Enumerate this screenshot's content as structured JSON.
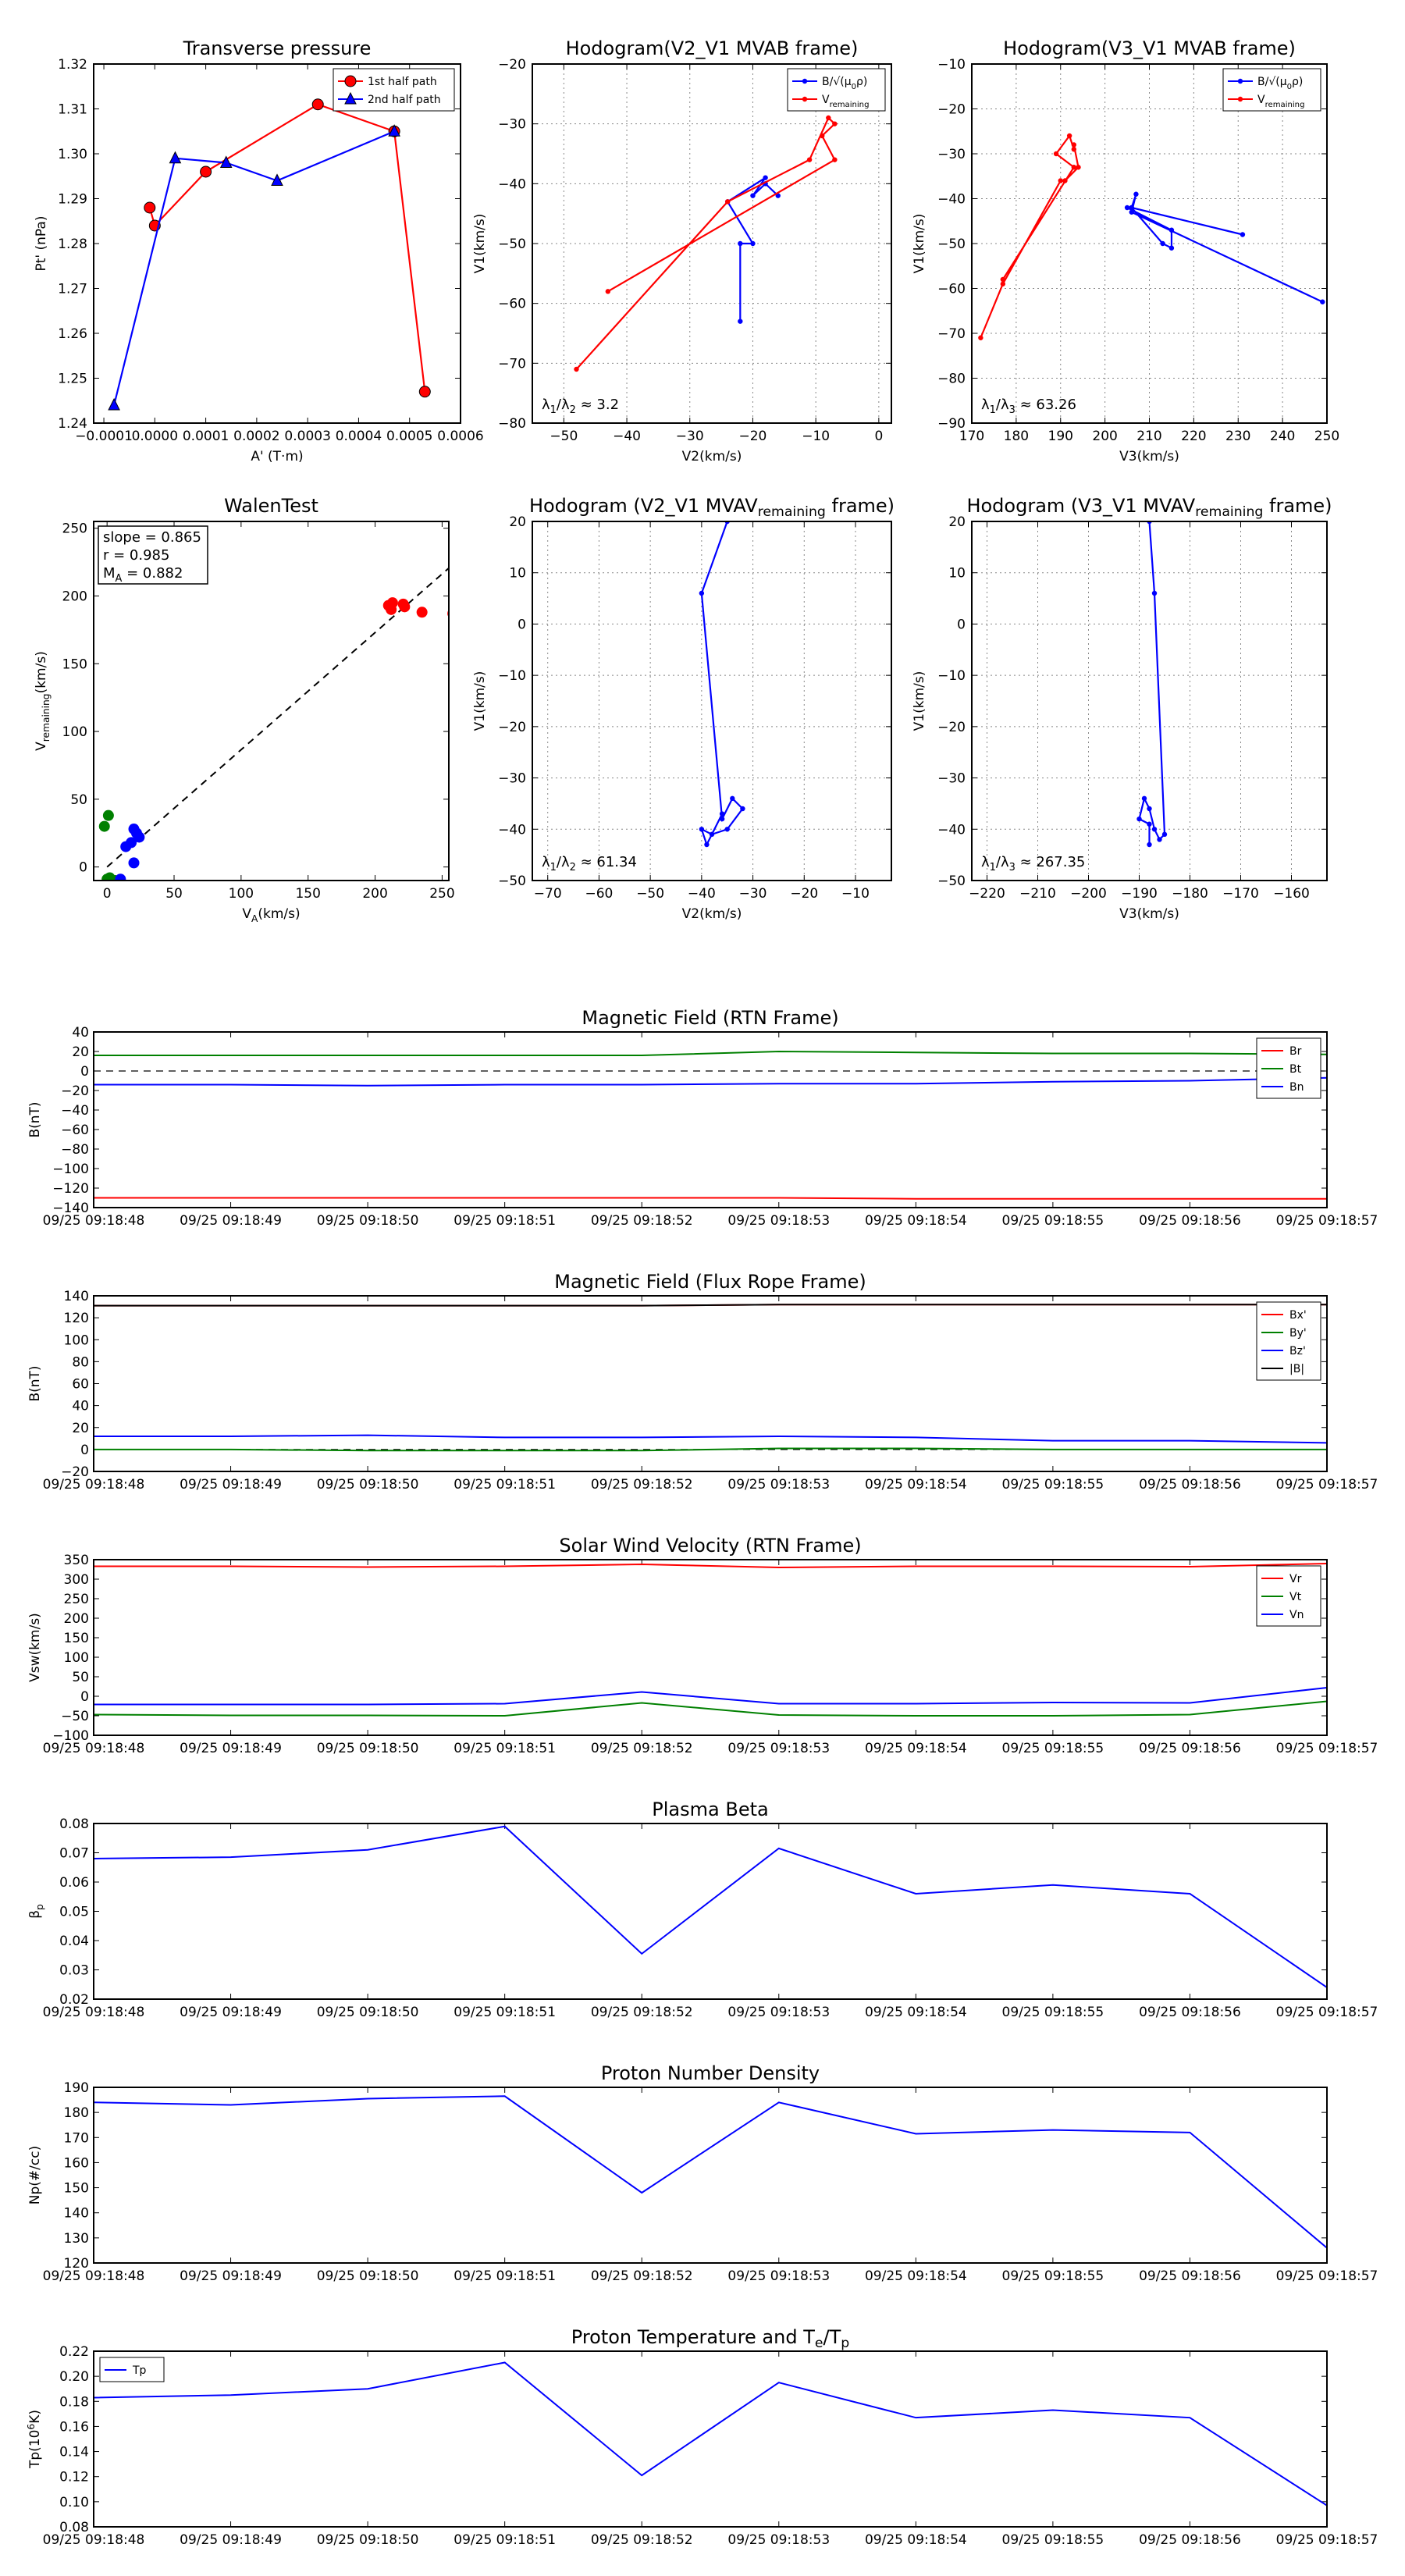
{
  "chart_data": [
    {
      "id": "tp",
      "type": "line",
      "title": "Transverse pressure",
      "xlabel": "A' (T·m)",
      "ylabel": "Pt' (nPa)",
      "xlim": [
        -0.00012,
        0.0006
      ],
      "ylim": [
        1.24,
        1.32
      ],
      "xticks": [
        -0.0001,
        0.0,
        0.0001,
        0.0002,
        0.0003,
        0.0004,
        0.0005,
        0.0006
      ],
      "xticklabels": [
        "−0.0001",
        "0.0000",
        "0.0001",
        "0.0002",
        "0.0003",
        "0.0004",
        "0.0005",
        "0.0006"
      ],
      "yticks": [
        1.24,
        1.25,
        1.26,
        1.27,
        1.28,
        1.29,
        1.3,
        1.31,
        1.32
      ],
      "yticklabels": [
        "1.24",
        "1.25",
        "1.26",
        "1.27",
        "1.28",
        "1.29",
        "1.30",
        "1.31",
        "1.32"
      ],
      "grid": false,
      "legend": "top-right",
      "series": [
        {
          "name": "1st half path",
          "color": "#ff0000",
          "marker": "circle",
          "x": [
            0.00053,
            0.00047,
            0.00032,
            0.0001,
            0.0,
            -1e-05
          ],
          "y": [
            1.247,
            1.305,
            1.311,
            1.296,
            1.284,
            1.288
          ]
        },
        {
          "name": "2nd half path",
          "color": "#0000ff",
          "marker": "triangle",
          "x": [
            -8e-05,
            4e-05,
            0.00014,
            0.00024,
            0.00047
          ],
          "y": [
            1.244,
            1.299,
            1.298,
            1.294,
            1.305
          ]
        }
      ]
    },
    {
      "id": "h1",
      "type": "line",
      "title": "Hodogram(V2_V1 MVAB frame)",
      "xlabel": "V2(km/s)",
      "ylabel": "V1(km/s)",
      "xlim": [
        -55,
        2
      ],
      "ylim": [
        -80,
        -20
      ],
      "xticks": [
        -50,
        -40,
        -30,
        -20,
        -10,
        0
      ],
      "xticklabels": [
        "−50",
        "−40",
        "−30",
        "−20",
        "−10",
        "0"
      ],
      "yticks": [
        -80,
        -70,
        -60,
        -50,
        -40,
        -30,
        -20
      ],
      "yticklabels": [
        "−80",
        "−70",
        "−60",
        "−50",
        "−40",
        "−30",
        "−20"
      ],
      "grid": true,
      "legend": "top-right",
      "annotation": "λ1/λ2 ≈ 3.2",
      "series": [
        {
          "name": "B/√(μ0ρ)",
          "color": "#0000ff",
          "marker": "dot",
          "x": [
            -22,
            -22,
            -20,
            -24,
            -18,
            -20,
            -18,
            -16
          ],
          "y": [
            -63,
            -50,
            -50,
            -43,
            -39,
            -42,
            -40,
            -42
          ]
        },
        {
          "name": "V_remaining",
          "color": "#ff0000",
          "marker": "dot",
          "x": [
            -48,
            -24,
            -11,
            -8,
            -7,
            -9,
            -7,
            -43
          ],
          "y": [
            -71,
            -43,
            -36,
            -29,
            -30,
            -32,
            -36,
            -58
          ]
        }
      ]
    },
    {
      "id": "h2",
      "type": "line",
      "title": "Hodogram(V3_V1 MVAB frame)",
      "xlabel": "V3(km/s)",
      "ylabel": "V1(km/s)",
      "xlim": [
        170,
        250
      ],
      "ylim": [
        -90,
        -10
      ],
      "xticks": [
        170,
        180,
        190,
        200,
        210,
        220,
        230,
        240,
        250
      ],
      "xticklabels": [
        "170",
        "180",
        "190",
        "200",
        "210",
        "220",
        "230",
        "240",
        "250"
      ],
      "yticks": [
        -90,
        -80,
        -70,
        -60,
        -50,
        -40,
        -30,
        -20,
        -10
      ],
      "yticklabels": [
        "−90",
        "−80",
        "−70",
        "−60",
        "−50",
        "−40",
        "−30",
        "−20",
        "−10"
      ],
      "grid": true,
      "legend": "top-right",
      "annotation": "λ1/λ3 ≈ 63.26",
      "series": [
        {
          "name": "B/√(μ0ρ)",
          "color": "#0000ff",
          "marker": "dot",
          "x": [
            249,
            206,
            207,
            206,
            231,
            206,
            213,
            215,
            215,
            205
          ],
          "y": [
            -63,
            -43,
            -39,
            -42,
            -48,
            -42,
            -50,
            -51,
            -47,
            -42
          ]
        },
        {
          "name": "V_remaining",
          "color": "#ff0000",
          "marker": "dot",
          "x": [
            172,
            177,
            190,
            191,
            194,
            193,
            193,
            192,
            189,
            193,
            177
          ],
          "y": [
            -71,
            -59,
            -36,
            -36,
            -33,
            -28,
            -29,
            -26,
            -30,
            -33,
            -58
          ]
        }
      ]
    },
    {
      "id": "walen",
      "type": "scatter",
      "title": "WalenTest",
      "xlabel": "V_A(km/s)",
      "ylabel": "V_remaining(km/s)",
      "xlim": [
        -10,
        255
      ],
      "ylim": [
        -10,
        255
      ],
      "xticks": [
        0,
        50,
        100,
        150,
        200,
        250
      ],
      "xticklabels": [
        "0",
        "50",
        "100",
        "150",
        "200",
        "250"
      ],
      "yticks": [
        0,
        50,
        100,
        150,
        200,
        250
      ],
      "yticklabels": [
        "0",
        "50",
        "100",
        "150",
        "200",
        "250"
      ],
      "grid": false,
      "fit": {
        "slope": 0.865,
        "label": "dashed fit line"
      },
      "stats": [
        "slope = 0.865",
        "r = 0.985",
        "M_A = 0.882"
      ],
      "series": [
        {
          "name": "red",
          "color": "#ff0000",
          "x": [
            212,
            213,
            222,
            221,
            235,
            258,
            211,
            210
          ],
          "y": [
            190,
            195,
            192,
            194,
            188,
            187,
            192,
            193
          ]
        },
        {
          "name": "green",
          "color": "#008000",
          "x": [
            -2,
            1,
            0,
            3,
            6,
            2
          ],
          "y": [
            30,
            38,
            -9,
            -12,
            -10,
            -8
          ]
        },
        {
          "name": "blue",
          "color": "#0000ff",
          "x": [
            20,
            22,
            24,
            18,
            14,
            20,
            10
          ],
          "y": [
            28,
            25,
            22,
            18,
            15,
            3,
            -9
          ]
        }
      ]
    },
    {
      "id": "h3",
      "type": "line",
      "title": "Hodogram (V2_V1 MVAV_remaining frame)",
      "xlabel": "V2(km/s)",
      "ylabel": "V1(km/s)",
      "xlim": [
        -73,
        -3
      ],
      "ylim": [
        -50,
        20
      ],
      "xticks": [
        -70,
        -60,
        -50,
        -40,
        -30,
        -20,
        -10
      ],
      "xticklabels": [
        "−70",
        "−60",
        "−50",
        "−40",
        "−30",
        "−20",
        "−10"
      ],
      "yticks": [
        -50,
        -40,
        -30,
        -20,
        -10,
        0,
        10,
        20
      ],
      "yticklabels": [
        "−50",
        "−40",
        "−30",
        "−20",
        "−10",
        "0",
        "10",
        "20"
      ],
      "grid": true,
      "annotation": "λ1/λ2 ≈ 61.34",
      "series": [
        {
          "name": "hodogram",
          "color": "#0000ff",
          "marker": "dot",
          "x": [
            -35,
            -40,
            -36,
            -34,
            -32,
            -35,
            -38,
            -40,
            -39,
            -36
          ],
          "y": [
            20,
            6,
            -38,
            -34,
            -36,
            -40,
            -41,
            -40,
            -43,
            -37
          ]
        }
      ]
    },
    {
      "id": "h4",
      "type": "line",
      "title": "Hodogram (V3_V1 MVAV_remaining frame)",
      "xlabel": "V3(km/s)",
      "ylabel": "V1(km/s)",
      "xlim": [
        -223,
        -153
      ],
      "ylim": [
        -50,
        20
      ],
      "xticks": [
        -220,
        -210,
        -200,
        -190,
        -180,
        -170,
        -160
      ],
      "xticklabels": [
        "−220",
        "−210",
        "−200",
        "−190",
        "−180",
        "−170",
        "−160"
      ],
      "yticks": [
        -50,
        -40,
        -30,
        -20,
        -10,
        0,
        10,
        20
      ],
      "yticklabels": [
        "−50",
        "−40",
        "−30",
        "−20",
        "−10",
        "0",
        "10",
        "20"
      ],
      "grid": true,
      "annotation": "λ1/λ3 ≈ 267.35",
      "series": [
        {
          "name": "hodogram",
          "color": "#0000ff",
          "marker": "dot",
          "x": [
            -188,
            -187,
            -185,
            -186,
            -187,
            -188,
            -189,
            -190,
            -188,
            -188
          ],
          "y": [
            20,
            6,
            -41,
            -42,
            -40,
            -36,
            -34,
            -38,
            -39,
            -43
          ]
        }
      ]
    },
    {
      "id": "mag_rtn",
      "type": "line",
      "title": "Magnetic Field (RTN Frame)",
      "xlabel": "",
      "ylabel": "B(nT)",
      "categories": [
        "09/25 09:18:48",
        "09/25 09:18:49",
        "09/25 09:18:50",
        "09/25 09:18:51",
        "09/25 09:18:52",
        "09/25 09:18:53",
        "09/25 09:18:54",
        "09/25 09:18:55",
        "09/25 09:18:56",
        "09/25 09:18:57"
      ],
      "ylim": [
        -140,
        40
      ],
      "yticks": [
        -140,
        -120,
        -100,
        -80,
        -60,
        -40,
        -20,
        0,
        20,
        40
      ],
      "yticklabels": [
        "−140",
        "−120",
        "−100",
        "−80",
        "−60",
        "−40",
        "−20",
        "0",
        "20",
        "40"
      ],
      "zero_line": true,
      "legend": "top-right",
      "series": [
        {
          "name": "Br",
          "color": "#ff0000",
          "values": [
            -130,
            -130,
            -130,
            -130,
            -130,
            -130,
            -131,
            -131,
            -131,
            -131
          ]
        },
        {
          "name": "Bt",
          "color": "#008000",
          "values": [
            16,
            16,
            16,
            16,
            16,
            20,
            19,
            18,
            18,
            17
          ]
        },
        {
          "name": "Bn",
          "color": "#0000ff",
          "values": [
            -14,
            -14,
            -15,
            -14,
            -14,
            -13,
            -13,
            -11,
            -10,
            -7
          ]
        }
      ]
    },
    {
      "id": "mag_fr",
      "type": "line",
      "title": "Magnetic Field (Flux Rope Frame)",
      "xlabel": "",
      "ylabel": "B(nT)",
      "categories": [
        "09/25 09:18:48",
        "09/25 09:18:49",
        "09/25 09:18:50",
        "09/25 09:18:51",
        "09/25 09:18:52",
        "09/25 09:18:53",
        "09/25 09:18:54",
        "09/25 09:18:55",
        "09/25 09:18:56",
        "09/25 09:18:57"
      ],
      "ylim": [
        -20,
        140
      ],
      "yticks": [
        -20,
        0,
        20,
        40,
        60,
        80,
        100,
        120,
        140
      ],
      "yticklabels": [
        "−20",
        "0",
        "20",
        "40",
        "60",
        "80",
        "100",
        "120",
        "140"
      ],
      "zero_line": true,
      "legend": "top-right",
      "series": [
        {
          "name": "Bx'",
          "color": "#ff0000",
          "values": [
            131,
            131,
            131,
            131,
            131,
            132,
            132,
            132,
            132,
            132
          ]
        },
        {
          "name": "By'",
          "color": "#008000",
          "values": [
            0,
            0,
            -1,
            -1,
            -1,
            1,
            1,
            0,
            0,
            0
          ]
        },
        {
          "name": "Bz'",
          "color": "#0000ff",
          "values": [
            12,
            12,
            13,
            11,
            11,
            12,
            11,
            8,
            8,
            6
          ]
        },
        {
          "name": "|B|",
          "color": "#000000",
          "values": [
            131,
            131,
            131,
            131,
            131,
            132,
            132,
            132,
            132,
            132
          ]
        }
      ]
    },
    {
      "id": "vsw",
      "type": "line",
      "title": "Solar Wind Velocity (RTN Frame)",
      "xlabel": "",
      "ylabel": "Vsw(km/s)",
      "categories": [
        "09/25 09:18:48",
        "09/25 09:18:49",
        "09/25 09:18:50",
        "09/25 09:18:51",
        "09/25 09:18:52",
        "09/25 09:18:53",
        "09/25 09:18:54",
        "09/25 09:18:55",
        "09/25 09:18:56",
        "09/25 09:18:57"
      ],
      "ylim": [
        -100,
        350
      ],
      "yticks": [
        -100,
        -50,
        0,
        50,
        100,
        150,
        200,
        250,
        300,
        350
      ],
      "yticklabels": [
        "−100",
        "−50",
        "0",
        "50",
        "100",
        "150",
        "200",
        "250",
        "300",
        "350"
      ],
      "legend": "top-right",
      "series": [
        {
          "name": "Vr",
          "color": "#ff0000",
          "values": [
            333,
            333,
            331,
            333,
            338,
            330,
            333,
            333,
            332,
            340
          ]
        },
        {
          "name": "Vt",
          "color": "#008000",
          "values": [
            -47,
            -49,
            -49,
            -50,
            -17,
            -48,
            -50,
            -50,
            -47,
            -13
          ]
        },
        {
          "name": "Vn",
          "color": "#0000ff",
          "values": [
            -21,
            -21,
            -21,
            -19,
            11,
            -19,
            -19,
            -16,
            -17,
            22
          ]
        }
      ]
    },
    {
      "id": "beta",
      "type": "line",
      "title": "Plasma Beta",
      "xlabel": "",
      "ylabel": "βp",
      "categories": [
        "09/25 09:18:48",
        "09/25 09:18:49",
        "09/25 09:18:50",
        "09/25 09:18:51",
        "09/25 09:18:52",
        "09/25 09:18:53",
        "09/25 09:18:54",
        "09/25 09:18:55",
        "09/25 09:18:56",
        "09/25 09:18:57"
      ],
      "ylim": [
        0.02,
        0.08
      ],
      "yticks": [
        0.02,
        0.03,
        0.04,
        0.05,
        0.06,
        0.07,
        0.08
      ],
      "yticklabels": [
        "0.02",
        "0.03",
        "0.04",
        "0.05",
        "0.06",
        "0.07",
        "0.08"
      ],
      "series": [
        {
          "name": "beta",
          "color": "#0000ff",
          "values": [
            0.068,
            0.0685,
            0.071,
            0.079,
            0.0355,
            0.0715,
            0.056,
            0.059,
            0.056,
            0.024
          ]
        }
      ]
    },
    {
      "id": "np",
      "type": "line",
      "title": "Proton Number Density",
      "xlabel": "",
      "ylabel": "Np(#/cc)",
      "categories": [
        "09/25 09:18:48",
        "09/25 09:18:49",
        "09/25 09:18:50",
        "09/25 09:18:51",
        "09/25 09:18:52",
        "09/25 09:18:53",
        "09/25 09:18:54",
        "09/25 09:18:55",
        "09/25 09:18:56",
        "09/25 09:18:57"
      ],
      "ylim": [
        120,
        190
      ],
      "yticks": [
        120,
        130,
        140,
        150,
        160,
        170,
        180,
        190
      ],
      "yticklabels": [
        "120",
        "130",
        "140",
        "150",
        "160",
        "170",
        "180",
        "190"
      ],
      "series": [
        {
          "name": "Np",
          "color": "#0000ff",
          "values": [
            184,
            183,
            185.5,
            186.5,
            148,
            184,
            171.5,
            173,
            172,
            126
          ]
        }
      ]
    },
    {
      "id": "tp_temp",
      "type": "line",
      "title": "Proton Temperature and Te/Tp",
      "xlabel": "",
      "ylabel": "Tp(10⁶K)",
      "categories": [
        "09/25 09:18:48",
        "09/25 09:18:49",
        "09/25 09:18:50",
        "09/25 09:18:51",
        "09/25 09:18:52",
        "09/25 09:18:53",
        "09/25 09:18:54",
        "09/25 09:18:55",
        "09/25 09:18:56",
        "09/25 09:18:57"
      ],
      "ylim": [
        0.08,
        0.22
      ],
      "yticks": [
        0.08,
        0.1,
        0.12,
        0.14,
        0.16,
        0.18,
        0.2,
        0.22
      ],
      "yticklabels": [
        "0.08",
        "0.10",
        "0.12",
        "0.14",
        "0.16",
        "0.18",
        "0.20",
        "0.22"
      ],
      "legend": "top-left",
      "series": [
        {
          "name": "Tp",
          "color": "#0000ff",
          "values": [
            0.183,
            0.185,
            0.19,
            0.211,
            0.121,
            0.195,
            0.167,
            0.173,
            0.167,
            0.097
          ]
        }
      ]
    }
  ]
}
